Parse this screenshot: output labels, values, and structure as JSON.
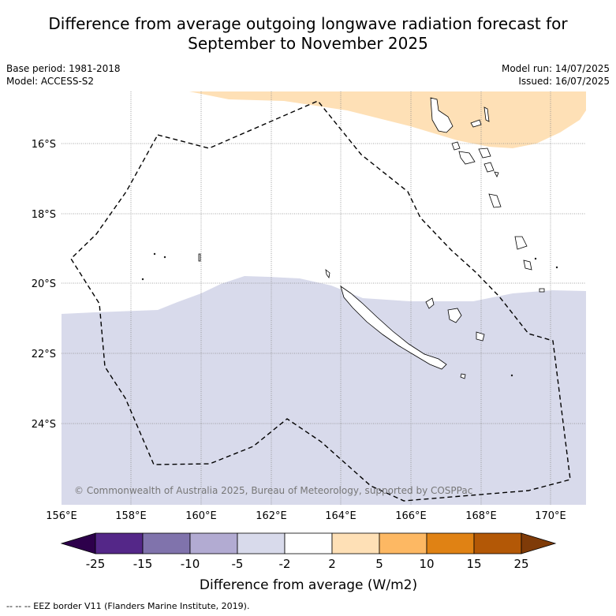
{
  "title_line1": "Difference from average outgoing longwave radiation forecast for",
  "title_line2": "September to November 2025",
  "base_period": "Base period: 1981-2018",
  "model": "Model: ACCESS-S2",
  "model_run": "Model run: 14/07/2025",
  "issued": "Issued: 16/07/2025",
  "copyright": "© Commonwealth of Australia 2025, Bureau of Meteorology, supported by COSPPac",
  "x_ticks": [
    "156°E",
    "158°E",
    "160°E",
    "162°E",
    "164°E",
    "166°E",
    "168°E",
    "170°E"
  ],
  "y_ticks": [
    "16°S",
    "18°S",
    "20°S",
    "22°S",
    "24°S"
  ],
  "colorbar": {
    "label": "Difference from average (W/m2)",
    "ticks": [
      "-25",
      "-15",
      "-10",
      "-5",
      "-2",
      "2",
      "5",
      "10",
      "15",
      "25"
    ],
    "colors": [
      "#2d004b",
      "#542788",
      "#8073ac",
      "#b2abd2",
      "#d8daeb",
      "#ffffff",
      "#fee0b6",
      "#fdb863",
      "#e08214",
      "#b35806",
      "#7f3b08"
    ]
  },
  "footnote": "-- -- -- EEZ border V11 (Flanders Marine Institute, 2019).",
  "map_colors": {
    "positive_fill": "#fee0b6",
    "negative_fill": "#d8daeb"
  }
}
